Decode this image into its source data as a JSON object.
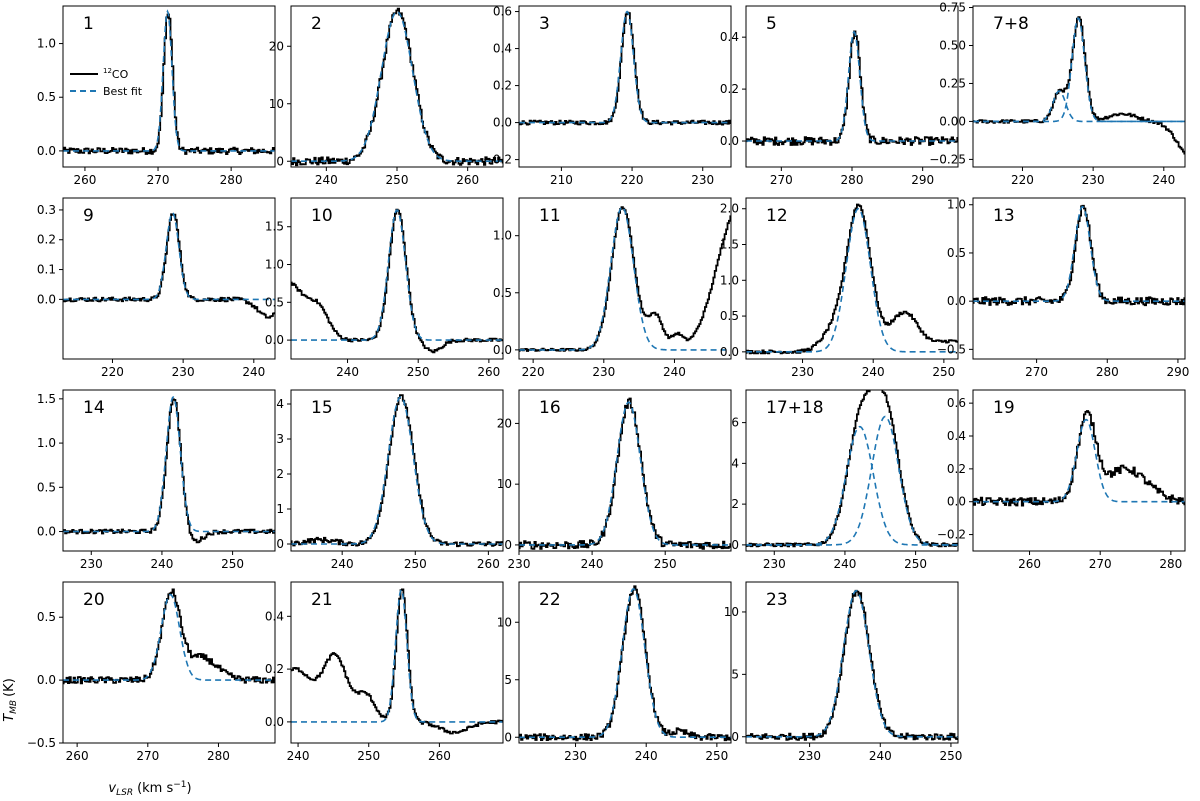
{
  "figure": {
    "ylabel_main": "T",
    "ylabel_sub": "MB",
    "ylabel_unit": "(K)",
    "xlabel_main": "v",
    "xlabel_sub": "LSR",
    "xlabel_unit": "(km s",
    "xlabel_exp": "−1",
    "xlabel_close": ")"
  },
  "legend": {
    "obs_sup": "12",
    "obs_label": "CO",
    "fit_label": "Best fit"
  },
  "colors": {
    "observed": "#000000",
    "fit": "#1f77b4"
  },
  "chart_data": [
    {
      "type": "line",
      "label": "1",
      "xlim": [
        257,
        286
      ],
      "ylim": [
        -0.15,
        1.35
      ],
      "xticks": [
        260,
        270,
        280
      ],
      "yticks": [
        0.0,
        0.5,
        1.0
      ],
      "noise": 0.04,
      "series": [
        {
          "name": "fit",
          "components": [
            {
              "amp": 1.3,
              "center": 271.3,
              "sigma": 0.6
            }
          ]
        }
      ],
      "extras": []
    },
    {
      "type": "line",
      "label": "2",
      "xlim": [
        235,
        265
      ],
      "ylim": [
        -1,
        27
      ],
      "xticks": [
        240,
        250,
        260
      ],
      "yticks": [
        0,
        10,
        20
      ],
      "noise": 0.05,
      "series": [
        {
          "name": "fit",
          "components": [
            {
              "amp": 26,
              "center": 250.0,
              "sigma": 2.2
            }
          ]
        }
      ],
      "extras": []
    },
    {
      "type": "line",
      "label": "3",
      "xlim": [
        204,
        234
      ],
      "ylim": [
        -0.24,
        0.63
      ],
      "xticks": [
        210,
        220,
        230
      ],
      "yticks": [
        -0.2,
        0.0,
        0.2,
        0.4,
        0.6
      ],
      "noise": 0.025,
      "series": [
        {
          "name": "fit",
          "components": [
            {
              "amp": 0.6,
              "center": 219.3,
              "sigma": 0.9
            }
          ]
        }
      ],
      "extras": []
    },
    {
      "type": "line",
      "label": "5",
      "xlim": [
        265,
        295
      ],
      "ylim": [
        -0.1,
        0.52
      ],
      "xticks": [
        270,
        280,
        290
      ],
      "yticks": [
        0.0,
        0.2,
        0.4
      ],
      "noise": 0.05,
      "series": [
        {
          "name": "fit",
          "components": [
            {
              "amp": 0.42,
              "center": 280.3,
              "sigma": 0.8
            }
          ]
        }
      ],
      "extras": []
    },
    {
      "type": "line",
      "label": "7+8",
      "xlim": [
        213,
        243
      ],
      "ylim": [
        -0.3,
        0.76
      ],
      "xticks": [
        220,
        230,
        240
      ],
      "yticks": [
        -0.25,
        0.0,
        0.25,
        0.5,
        0.75
      ],
      "noise": 0.02,
      "series": [
        {
          "name": "fit",
          "components": [
            {
              "amp": 0.2,
              "center": 225.2,
              "sigma": 0.9
            },
            {
              "amp": 0.68,
              "center": 227.9,
              "sigma": 0.9
            }
          ]
        }
      ],
      "extras": [
        {
          "amp": 0.05,
          "center": 234,
          "sigma": 2
        },
        {
          "amp": -0.25,
          "center": 244,
          "sigma": 2
        }
      ]
    },
    {
      "type": "line",
      "label": "9",
      "xlim": [
        213,
        243
      ],
      "ylim": [
        -0.2,
        0.34
      ],
      "xticks": [
        220,
        230,
        240
      ],
      "yticks": [
        0.0,
        0.1,
        0.2,
        0.3
      ],
      "noise": 0.025,
      "series": [
        {
          "name": "fit",
          "components": [
            {
              "amp": 0.29,
              "center": 228.5,
              "sigma": 0.9
            }
          ]
        }
      ],
      "extras": [
        {
          "amp": -0.06,
          "center": 242,
          "sigma": 1.5
        }
      ]
    },
    {
      "type": "line",
      "label": "10",
      "xlim": [
        232,
        262
      ],
      "ylim": [
        -0.25,
        1.88
      ],
      "xticks": [
        240,
        250,
        260
      ],
      "yticks": [
        0.0,
        0.5,
        1.0,
        1.5
      ],
      "noise": 0.02,
      "series": [
        {
          "name": "fit",
          "components": [
            {
              "amp": 1.72,
              "center": 247.0,
              "sigma": 1.2
            }
          ]
        }
      ],
      "extras": [
        {
          "amp": 0.75,
          "center": 231.5,
          "sigma": 2.2
        },
        {
          "amp": 0.38,
          "center": 235.8,
          "sigma": 1.5
        },
        {
          "amp": -0.15,
          "center": 252,
          "sigma": 1.2
        }
      ]
    },
    {
      "type": "line",
      "label": "11",
      "xlim": [
        218,
        248
      ],
      "ylim": [
        -0.08,
        1.33
      ],
      "xticks": [
        220,
        230,
        240
      ],
      "yticks": [
        0.0,
        0.5,
        1.0
      ],
      "noise": 0.015,
      "series": [
        {
          "name": "fit",
          "components": [
            {
              "amp": 1.25,
              "center": 232.6,
              "sigma": 1.6
            }
          ]
        }
      ],
      "extras": [
        {
          "amp": 0.3,
          "center": 237.2,
          "sigma": 1.1
        },
        {
          "amp": 0.12,
          "center": 240.3,
          "sigma": 0.8
        },
        {
          "amp": 1.25,
          "center": 249,
          "sigma": 3.0
        }
      ]
    },
    {
      "type": "line",
      "label": "12",
      "xlim": [
        222,
        252
      ],
      "ylim": [
        -0.1,
        2.15
      ],
      "xticks": [
        230,
        240,
        250
      ],
      "yticks": [
        0.0,
        0.5,
        1.0,
        1.5,
        2.0
      ],
      "noise": 0.02,
      "series": [
        {
          "name": "fit",
          "components": [
            {
              "amp": 2.0,
              "center": 237.9,
              "sigma": 1.7
            }
          ]
        }
      ],
      "extras": [
        {
          "amp": 0.3,
          "center": 234.5,
          "sigma": 1.8
        },
        {
          "amp": 0.55,
          "center": 244.3,
          "sigma": 2.0
        },
        {
          "amp": 0.15,
          "center": 251,
          "sigma": 2.5
        }
      ]
    },
    {
      "type": "line",
      "label": "13",
      "xlim": [
        261,
        291
      ],
      "ylim": [
        -0.6,
        1.07
      ],
      "xticks": [
        270,
        280,
        290
      ],
      "yticks": [
        -0.5,
        0.0,
        0.5,
        1.0
      ],
      "noise": 0.05,
      "series": [
        {
          "name": "fit",
          "components": [
            {
              "amp": 0.98,
              "center": 276.5,
              "sigma": 1.1
            }
          ]
        }
      ],
      "extras": []
    },
    {
      "type": "line",
      "label": "14",
      "xlim": [
        226,
        256
      ],
      "ylim": [
        -0.22,
        1.6
      ],
      "xticks": [
        230,
        240,
        250
      ],
      "yticks": [
        0.0,
        0.5,
        1.0,
        1.5
      ],
      "noise": 0.025,
      "series": [
        {
          "name": "fit",
          "components": [
            {
              "amp": 1.52,
              "center": 241.6,
              "sigma": 1.0
            }
          ]
        }
      ],
      "extras": [
        {
          "amp": -0.12,
          "center": 244.5,
          "sigma": 1.2
        }
      ]
    },
    {
      "type": "line",
      "label": "15",
      "xlim": [
        233,
        262
      ],
      "ylim": [
        -0.2,
        4.4
      ],
      "xticks": [
        240,
        250,
        260
      ],
      "yticks": [
        0,
        1,
        2,
        3,
        4
      ],
      "noise": 0.03,
      "series": [
        {
          "name": "fit",
          "components": [
            {
              "amp": 4.2,
              "center": 248.0,
              "sigma": 1.7
            }
          ]
        }
      ],
      "extras": [
        {
          "amp": 0.12,
          "center": 237,
          "sigma": 2.0
        }
      ]
    },
    {
      "type": "line",
      "label": "16",
      "xlim": [
        230,
        259
      ],
      "ylim": [
        -1,
        25.5
      ],
      "xticks": [
        230,
        240,
        250
      ],
      "yticks": [
        0,
        10,
        20
      ],
      "noise": 0.05,
      "series": [
        {
          "name": "fit",
          "components": [
            {
              "amp": 23.5,
              "center": 245.0,
              "sigma": 1.6
            }
          ]
        }
      ],
      "extras": []
    },
    {
      "type": "line",
      "label": "17+18",
      "xlim": [
        226,
        256
      ],
      "ylim": [
        -0.3,
        7.6
      ],
      "xticks": [
        230,
        240,
        250
      ],
      "yticks": [
        0,
        2,
        4,
        6
      ],
      "noise": 0.02,
      "series": [
        {
          "name": "fit",
          "components": [
            {
              "amp": 5.8,
              "center": 242.1,
              "sigma": 1.9
            },
            {
              "amp": 6.3,
              "center": 245.7,
              "sigma": 1.9
            }
          ]
        }
      ],
      "extras": []
    },
    {
      "type": "line",
      "label": "19",
      "xlim": [
        252,
        282
      ],
      "ylim": [
        -0.3,
        0.68
      ],
      "xticks": [
        260,
        270,
        280
      ],
      "yticks": [
        -0.2,
        0.0,
        0.2,
        0.4,
        0.6
      ],
      "noise": 0.05,
      "series": [
        {
          "name": "fit",
          "components": [
            {
              "amp": 0.5,
              "center": 268.0,
              "sigma": 1.3
            }
          ]
        }
      ],
      "extras": [
        {
          "amp": 0.2,
          "center": 273.5,
          "sigma": 3.0
        }
      ]
    },
    {
      "type": "line",
      "label": "20",
      "xlim": [
        258,
        288
      ],
      "ylim": [
        -0.5,
        0.78
      ],
      "xticks": [
        260,
        270,
        280
      ],
      "yticks": [
        -0.5,
        0.0,
        0.5
      ],
      "noise": 0.04,
      "series": [
        {
          "name": "fit",
          "components": [
            {
              "amp": 0.68,
              "center": 273.2,
              "sigma": 1.3
            }
          ]
        }
      ],
      "extras": [
        {
          "amp": 0.18,
          "center": 277.5,
          "sigma": 2.2
        }
      ]
    },
    {
      "type": "line",
      "label": "21",
      "xlim": [
        239,
        269
      ],
      "ylim": [
        -0.08,
        0.53
      ],
      "xticks": [
        240,
        250,
        260
      ],
      "yticks": [
        0.0,
        0.2,
        0.4
      ],
      "noise": 0.02,
      "series": [
        {
          "name": "fit",
          "components": [
            {
              "amp": 0.5,
              "center": 254.6,
              "sigma": 0.8
            }
          ]
        }
      ],
      "extras": [
        {
          "amp": 0.2,
          "center": 239.5,
          "sigma": 2.5
        },
        {
          "amp": 0.24,
          "center": 245.2,
          "sigma": 1.7
        },
        {
          "amp": 0.1,
          "center": 249.5,
          "sigma": 1.3
        },
        {
          "amp": -0.04,
          "center": 262,
          "sigma": 2
        }
      ]
    },
    {
      "type": "line",
      "label": "22",
      "xlim": [
        222,
        252
      ],
      "ylim": [
        -0.5,
        13.5
      ],
      "xticks": [
        230,
        240,
        250
      ],
      "yticks": [
        0,
        5,
        10
      ],
      "noise": 0.04,
      "series": [
        {
          "name": "fit",
          "components": [
            {
              "amp": 12.9,
              "center": 238.2,
              "sigma": 1.6
            }
          ]
        }
      ],
      "extras": [
        {
          "amp": 0.5,
          "center": 244.5,
          "sigma": 1.2
        }
      ]
    },
    {
      "type": "line",
      "label": "23",
      "xlim": [
        221,
        251
      ],
      "ylim": [
        -0.5,
        12.4
      ],
      "xticks": [
        230,
        240,
        250
      ],
      "yticks": [
        0,
        5,
        10
      ],
      "noise": 0.04,
      "series": [
        {
          "name": "fit",
          "components": [
            {
              "amp": 11.7,
              "center": 236.6,
              "sigma": 1.8
            }
          ]
        }
      ],
      "extras": []
    }
  ]
}
